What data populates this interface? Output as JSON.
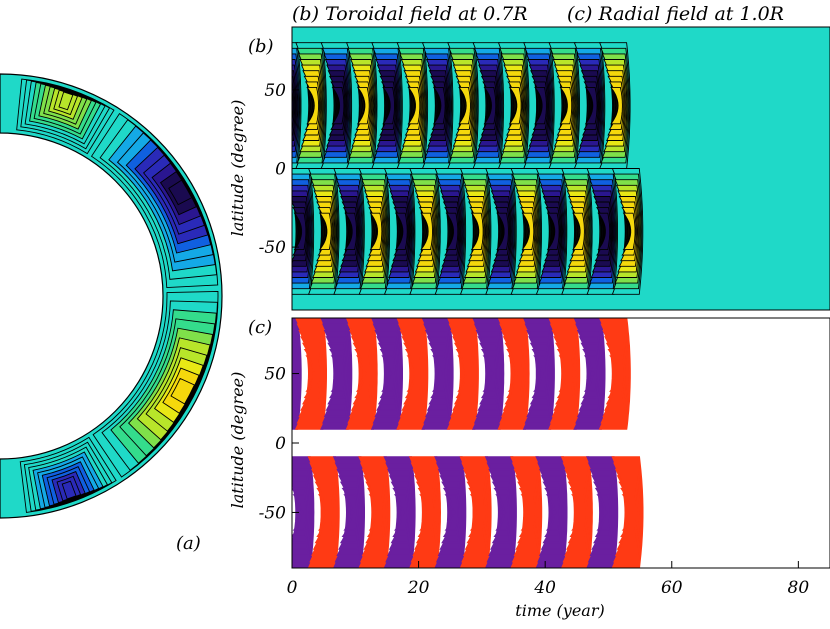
{
  "panel_a": {
    "label": "(a)"
  },
  "panel_b": {
    "title": "(b) Toroidal field at 0.7R",
    "label": "(b)"
  },
  "panel_c": {
    "title": "(c) Radial field at 1.0R",
    "label": "(c)"
  },
  "chart_data": [
    {
      "type": "heatmap",
      "title": "(b) Toroidal field at 0.7R",
      "xlabel": "",
      "ylabel": "latitude (degree)",
      "xlim": [
        0,
        85
      ],
      "ylim": [
        -90,
        90
      ],
      "yticks": [
        50,
        0,
        -50
      ],
      "bands": [
        {
          "lat": 40,
          "phase": 0
        },
        {
          "lat": -40,
          "phase": 0.5
        }
      ],
      "period_years": 8,
      "first_peak_years": 3.5,
      "colors": {
        "positive": "#f0e60a",
        "negative": "#3a0a78",
        "background": "#1fd9c8"
      }
    },
    {
      "type": "heatmap",
      "title": "(c) Radial field at 1.0R",
      "xlabel": "time (year)",
      "ylabel": "latitude (degree)",
      "xlim": [
        0,
        85
      ],
      "ylim": [
        -90,
        90
      ],
      "xticks": [
        0,
        20,
        40,
        60,
        80
      ],
      "yticks": [
        50,
        0,
        -50
      ],
      "bands": [
        {
          "lat": 50,
          "phase": 0
        },
        {
          "lat": -50,
          "phase": 0.5
        }
      ],
      "period_years": 8,
      "first_peak_years": 3.5,
      "colors": {
        "positive": "#ff3a14",
        "negative": "#6a1fa0"
      }
    }
  ]
}
